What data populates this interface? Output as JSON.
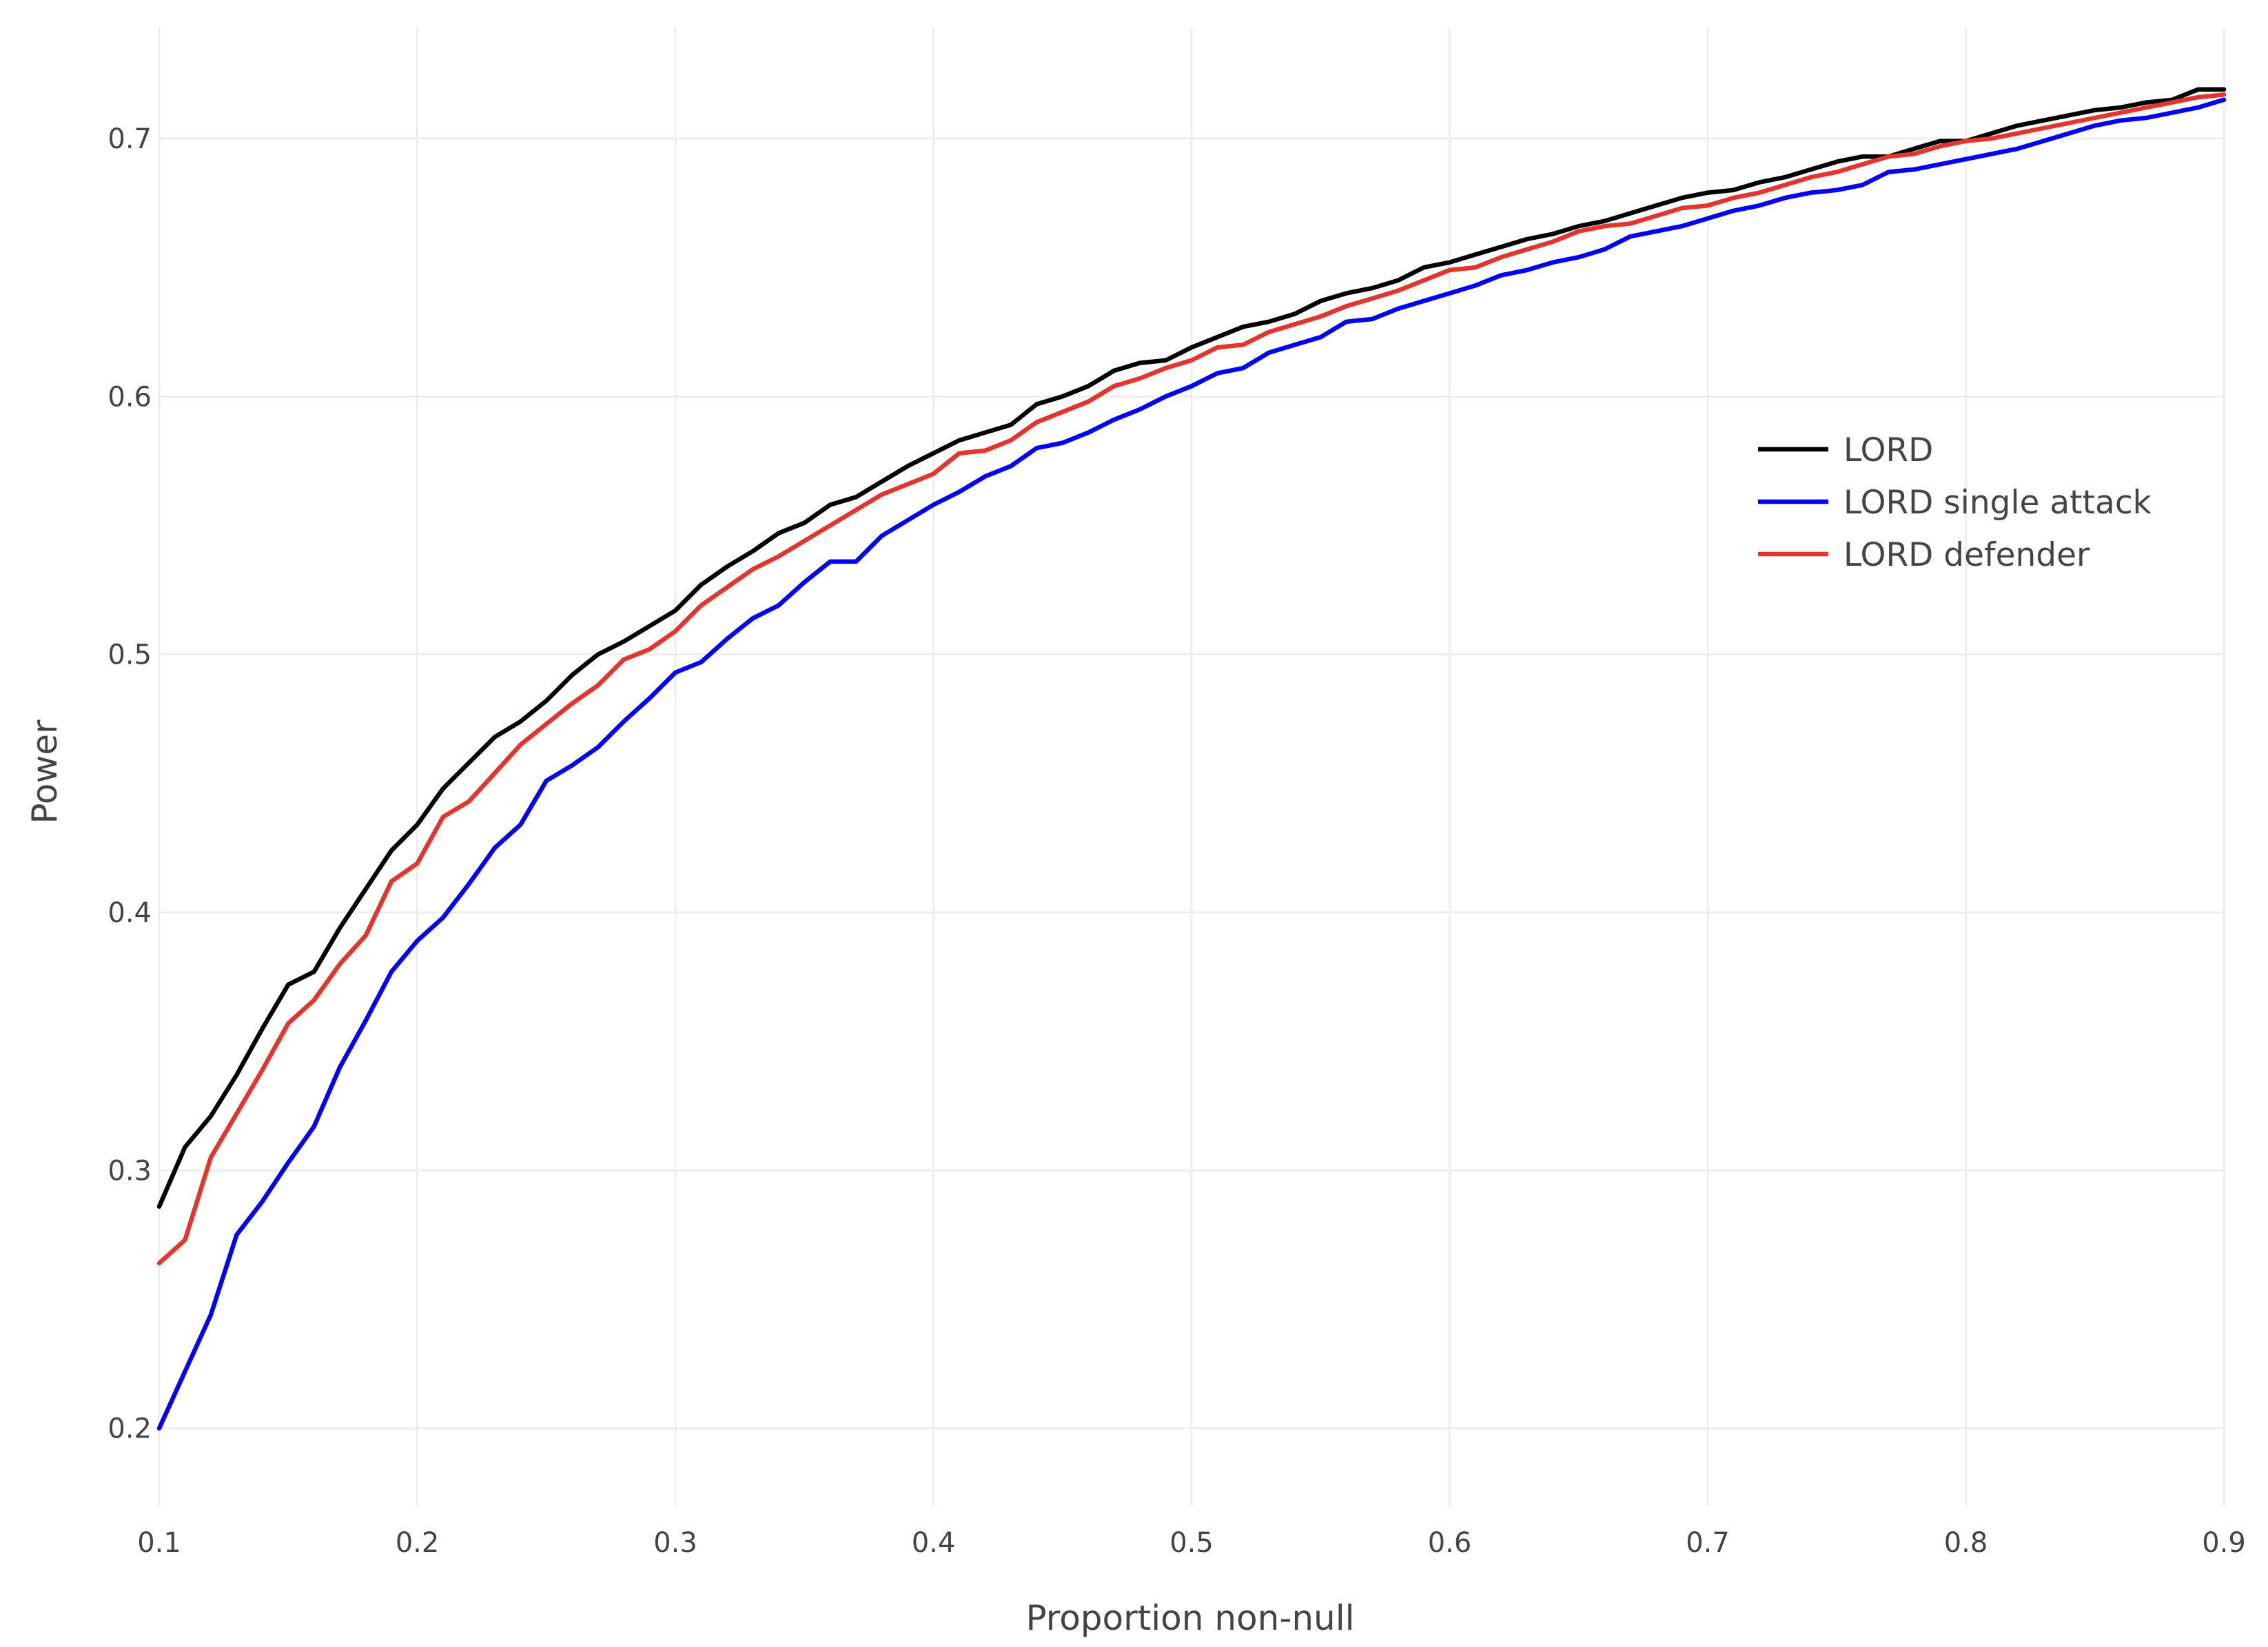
{
  "chart_data": {
    "type": "line",
    "title": "",
    "xlabel": "Proportion non-null",
    "ylabel": "Power",
    "xlim": [
      0.1,
      0.9
    ],
    "ylim": [
      0.17,
      0.743
    ],
    "xticks": [
      0.1,
      0.2,
      0.3,
      0.4,
      0.5,
      0.6,
      0.7,
      0.8,
      0.9
    ],
    "xtick_labels": [
      "0.1",
      "0.2",
      "0.3",
      "0.4",
      "0.5",
      "0.6",
      "0.7",
      "0.8",
      "0.9"
    ],
    "yticks": [
      0.2,
      0.3,
      0.4,
      0.5,
      0.6,
      0.7
    ],
    "ytick_labels": [
      "0.2",
      "0.3",
      "0.4",
      "0.5",
      "0.6",
      "0.7"
    ],
    "grid": true,
    "legend_position": "right, upper-middle",
    "x": [
      0.1,
      0.11,
      0.12,
      0.13,
      0.14,
      0.15,
      0.16,
      0.17,
      0.18,
      0.19,
      0.2,
      0.21,
      0.22,
      0.23,
      0.24,
      0.25,
      0.26,
      0.27,
      0.28,
      0.29,
      0.3,
      0.31,
      0.32,
      0.33,
      0.34,
      0.35,
      0.36,
      0.37,
      0.38,
      0.39,
      0.4,
      0.41,
      0.42,
      0.43,
      0.44,
      0.45,
      0.46,
      0.47,
      0.48,
      0.49,
      0.5,
      0.51,
      0.52,
      0.53,
      0.54,
      0.55,
      0.56,
      0.57,
      0.58,
      0.59,
      0.6,
      0.61,
      0.62,
      0.63,
      0.64,
      0.65,
      0.66,
      0.67,
      0.68,
      0.69,
      0.7,
      0.71,
      0.72,
      0.73,
      0.74,
      0.75,
      0.76,
      0.77,
      0.78,
      0.79,
      0.8,
      0.81,
      0.82,
      0.83,
      0.84,
      0.85,
      0.86,
      0.87,
      0.88,
      0.89,
      0.9
    ],
    "series": [
      {
        "name": "LORD",
        "color": "#000000",
        "values": [
          0.286,
          0.309,
          0.321,
          0.337,
          0.355,
          0.372,
          0.377,
          0.394,
          0.409,
          0.424,
          0.434,
          0.448,
          0.458,
          0.468,
          0.474,
          0.482,
          0.492,
          0.5,
          0.505,
          0.511,
          0.517,
          0.527,
          0.534,
          0.54,
          0.547,
          0.551,
          0.558,
          0.561,
          0.567,
          0.573,
          0.578,
          0.583,
          0.586,
          0.589,
          0.597,
          0.6,
          0.604,
          0.61,
          0.613,
          0.614,
          0.619,
          0.623,
          0.627,
          0.629,
          0.632,
          0.637,
          0.64,
          0.642,
          0.645,
          0.65,
          0.652,
          0.655,
          0.658,
          0.661,
          0.663,
          0.666,
          0.668,
          0.671,
          0.674,
          0.677,
          0.679,
          0.68,
          0.683,
          0.685,
          0.688,
          0.691,
          0.693,
          0.693,
          0.696,
          0.699,
          0.699,
          0.702,
          0.705,
          0.707,
          0.709,
          0.711,
          0.712,
          0.714,
          0.715,
          0.719,
          0.719
        ]
      },
      {
        "name": "LORD single attack",
        "color": "#0000ff",
        "values": [
          0.2,
          0.222,
          0.244,
          0.275,
          0.288,
          0.303,
          0.317,
          0.34,
          0.358,
          0.377,
          0.389,
          0.398,
          0.411,
          0.425,
          0.434,
          0.451,
          0.457,
          0.464,
          0.474,
          0.483,
          0.493,
          0.497,
          0.506,
          0.514,
          0.519,
          0.528,
          0.536,
          0.536,
          0.546,
          0.552,
          0.558,
          0.563,
          0.569,
          0.573,
          0.58,
          0.582,
          0.586,
          0.591,
          0.595,
          0.6,
          0.604,
          0.609,
          0.611,
          0.617,
          0.62,
          0.623,
          0.629,
          0.63,
          0.634,
          0.637,
          0.64,
          0.643,
          0.647,
          0.649,
          0.652,
          0.654,
          0.657,
          0.662,
          0.664,
          0.666,
          0.669,
          0.672,
          0.674,
          0.677,
          0.679,
          0.68,
          0.682,
          0.687,
          0.688,
          0.69,
          0.692,
          0.694,
          0.696,
          0.699,
          0.702,
          0.705,
          0.707,
          0.708,
          0.71,
          0.712,
          0.715
        ]
      },
      {
        "name": "LORD defender",
        "color": "#e3352c",
        "values": [
          0.264,
          0.273,
          0.305,
          0.322,
          0.339,
          0.357,
          0.366,
          0.38,
          0.391,
          0.412,
          0.419,
          0.437,
          0.443,
          0.454,
          0.465,
          0.473,
          0.481,
          0.488,
          0.498,
          0.502,
          0.509,
          0.519,
          0.526,
          0.533,
          0.538,
          0.544,
          0.55,
          0.556,
          0.562,
          0.566,
          0.57,
          0.578,
          0.579,
          0.583,
          0.59,
          0.594,
          0.598,
          0.604,
          0.607,
          0.611,
          0.614,
          0.619,
          0.62,
          0.625,
          0.628,
          0.631,
          0.635,
          0.638,
          0.641,
          0.645,
          0.649,
          0.65,
          0.654,
          0.657,
          0.66,
          0.664,
          0.666,
          0.667,
          0.67,
          0.673,
          0.674,
          0.677,
          0.679,
          0.682,
          0.685,
          0.687,
          0.69,
          0.693,
          0.694,
          0.697,
          0.699,
          0.7,
          0.702,
          0.704,
          0.706,
          0.708,
          0.71,
          0.712,
          0.714,
          0.716,
          0.717
        ]
      }
    ]
  }
}
